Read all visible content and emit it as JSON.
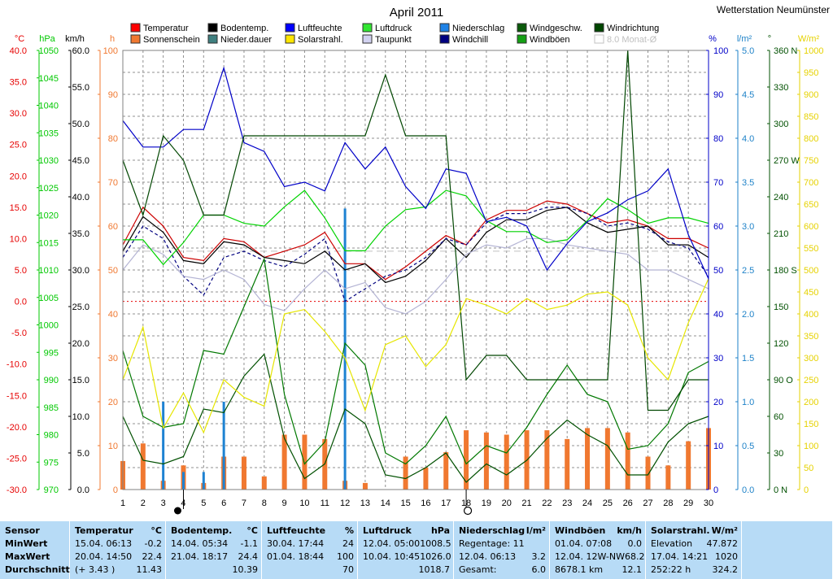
{
  "chart_data": {
    "type": "line",
    "title": "April 2011",
    "station": "Wetterstation Neumünster",
    "x": {
      "min": 1,
      "max": 30,
      "ticks": [
        1,
        2,
        3,
        4,
        5,
        6,
        7,
        8,
        9,
        10,
        11,
        12,
        13,
        14,
        15,
        16,
        17,
        18,
        19,
        20,
        21,
        22,
        23,
        24,
        25,
        26,
        27,
        28,
        29,
        30
      ]
    },
    "axes": [
      {
        "id": "temp",
        "unit": "°C",
        "color": "#e60000",
        "min": -30,
        "max": 40,
        "ticks": [
          "40.0",
          "35.0",
          "30.0",
          "25.0",
          "20.0",
          "15.0",
          "10.0",
          "5.0",
          "0.0",
          "-5.0",
          "-10.0",
          "-15.0",
          "-20.0",
          "-25.0",
          "-30.0"
        ]
      },
      {
        "id": "press",
        "unit": "hPa",
        "color": "#00c800",
        "min": 970,
        "max": 1050,
        "ticks": [
          "1050",
          "1045",
          "1040",
          "1035",
          "1030",
          "1025",
          "1020",
          "1015",
          "1010",
          "1005",
          "1000",
          "995",
          "990",
          "985",
          "980",
          "975",
          "970"
        ]
      },
      {
        "id": "wind",
        "unit": "km/h",
        "color": "#000000",
        "min": 0,
        "max": 60,
        "ticks": [
          "60.0",
          "55.0",
          "50.0",
          "45.0",
          "40.0",
          "35.0",
          "30.0",
          "25.0",
          "20.0",
          "15.0",
          "10.0",
          "5.0",
          "0.0"
        ]
      },
      {
        "id": "sun",
        "unit": "h",
        "color": "#f07830",
        "min": 0,
        "max": 100,
        "ticks": [
          "100",
          "90",
          "80",
          "70",
          "60",
          "50",
          "40",
          "30",
          "20",
          "10",
          "0"
        ]
      },
      {
        "id": "hum",
        "unit": "%",
        "color": "#0000c8",
        "min": 0,
        "max": 100,
        "ticks": [
          "100",
          "90",
          "80",
          "70",
          "60",
          "50",
          "40",
          "30",
          "20",
          "10",
          "0"
        ]
      },
      {
        "id": "rain",
        "unit": "l/m²",
        "color": "#1e82c8",
        "min": 0,
        "max": 5,
        "ticks": [
          "5.0",
          "4.5",
          "4.0",
          "3.5",
          "3.0",
          "2.5",
          "2.0",
          "1.5",
          "1.0",
          "0.5",
          "0.0"
        ]
      },
      {
        "id": "dir",
        "unit": "°",
        "color": "#005000",
        "min": 0,
        "max": 360,
        "ticks": [
          "360 N",
          "330",
          "300",
          "270 W",
          "240",
          "210",
          "180 S",
          "150",
          "120",
          "90 O",
          "60",
          "30",
          "0 N"
        ]
      },
      {
        "id": "solar",
        "unit": "W/m²",
        "color": "#e6d200",
        "min": 0,
        "max": 1000,
        "ticks": [
          "1000",
          "950",
          "900",
          "850",
          "800",
          "750",
          "700",
          "650",
          "600",
          "550",
          "500",
          "450",
          "400",
          "350",
          "300",
          "250",
          "200",
          "150",
          "100",
          "50",
          "0"
        ]
      }
    ],
    "legend": [
      {
        "label": "Temperatur",
        "color": "#ff0000"
      },
      {
        "label": "Sonnenschein",
        "color": "#f07830"
      },
      {
        "label": "Bodentemp.",
        "color": "#000000"
      },
      {
        "label": "Nieder.dauer",
        "color": "#408080"
      },
      {
        "label": "Luftfeuchte",
        "color": "#0000ff"
      },
      {
        "label": "Solarstrahl.",
        "color": "#ffe600"
      },
      {
        "label": "Luftdruck",
        "color": "#32e632"
      },
      {
        "label": "Taupunkt",
        "color": "#d2d2f0"
      },
      {
        "label": "Niederschlag",
        "color": "#1e82e6"
      },
      {
        "label": "Windchill",
        "color": "#000080"
      },
      {
        "label": "Windgeschw.",
        "color": "#0a5a0a"
      },
      {
        "label": "Windböen",
        "color": "#14a014"
      },
      {
        "label": "Windrichtung",
        "color": "#004600"
      },
      {
        "label": "8.0 Monat-Ø",
        "color": "#c8c8c8"
      }
    ],
    "series": [
      {
        "name": "Temperatur",
        "axis": "temp",
        "color": "#cc0000",
        "style": "solid",
        "values": [
          9.0,
          15.0,
          12.0,
          7.0,
          6.5,
          10.0,
          9.5,
          7.0,
          8.0,
          9.0,
          11.0,
          6.0,
          6.0,
          3.5,
          5.5,
          8.0,
          10.5,
          9.0,
          13.0,
          14.5,
          14.5,
          16.0,
          15.5,
          14.0,
          12.5,
          13.0,
          12.0,
          10.0,
          10.0,
          8.5
        ]
      },
      {
        "name": "Bodentemp.",
        "axis": "temp",
        "color": "#000000",
        "style": "solid",
        "values": [
          8.0,
          13.5,
          11.0,
          6.5,
          6.0,
          9.5,
          9.0,
          7.0,
          6.5,
          6.0,
          8.0,
          5.0,
          6.0,
          3.0,
          4.0,
          6.5,
          10.0,
          7.0,
          11.0,
          13.0,
          13.0,
          14.5,
          15.0,
          12.5,
          11.0,
          11.5,
          12.0,
          9.0,
          9.0,
          7.0
        ]
      },
      {
        "name": "Windchill",
        "axis": "temp",
        "color": "#000080",
        "style": "dashed",
        "values": [
          7.0,
          12.0,
          10.0,
          4.0,
          1.0,
          7.0,
          8.0,
          6.5,
          5.5,
          7.5,
          10.0,
          0.0,
          2.0,
          4.0,
          5.0,
          7.0,
          10.0,
          9.0,
          12.5,
          14.0,
          14.0,
          15.0,
          15.0,
          14.0,
          12.0,
          12.5,
          11.5,
          9.5,
          8.5,
          4.0
        ]
      },
      {
        "name": "Taupunkt",
        "axis": "temp",
        "color": "#b4b4d4",
        "style": "solid",
        "values": [
          5.0,
          9.0,
          7.5,
          4.0,
          3.5,
          5.0,
          3.5,
          -0.5,
          -1.5,
          2.0,
          5.0,
          2.0,
          3.0,
          -1.0,
          -2.0,
          0.0,
          3.5,
          7.5,
          9.0,
          8.5,
          10.0,
          10.0,
          9.0,
          8.5,
          8.0,
          7.5,
          5.0,
          5.0,
          3.5,
          2.0
        ]
      },
      {
        "name": "Luftdruck",
        "axis": "press",
        "color": "#00d200",
        "style": "solid",
        "values": [
          1015.5,
          1015.5,
          1011.0,
          1015.0,
          1020.0,
          1020.0,
          1018.5,
          1018.0,
          1021.5,
          1024.5,
          1019.5,
          1013.5,
          1013.5,
          1018.0,
          1021.0,
          1021.5,
          1024.5,
          1023.5,
          1019.0,
          1017.0,
          1017.0,
          1015.0,
          1015.5,
          1019.0,
          1023.0,
          1021.0,
          1018.5,
          1019.5,
          1019.5,
          1018.5
        ]
      },
      {
        "name": "Luftfeuchte",
        "axis": "hum",
        "color": "#0000c8",
        "style": "solid",
        "values": [
          84,
          78,
          78,
          82,
          82,
          96,
          79,
          77,
          69,
          70,
          68,
          79,
          73,
          78,
          69,
          64,
          73,
          72,
          61,
          62,
          60,
          50,
          56,
          61,
          63,
          66,
          68,
          73,
          58,
          48
        ]
      },
      {
        "name": "Windböen",
        "axis": "wind",
        "color": "#007800",
        "style": "solid",
        "values": [
          19.0,
          10.0,
          8.5,
          9.0,
          19.0,
          18.5,
          25.0,
          31.5,
          13.0,
          3.5,
          6.5,
          20.0,
          17.0,
          5.0,
          3.5,
          6.0,
          10.0,
          3.5,
          6.0,
          5.0,
          8.5,
          13.0,
          17.0,
          13.0,
          12.0,
          5.5,
          6.0,
          9.0,
          16.0,
          17.5
        ]
      },
      {
        "name": "Windgeschw.",
        "axis": "wind",
        "color": "#005000",
        "style": "solid",
        "values": [
          10.0,
          4.0,
          3.5,
          4.5,
          11.0,
          10.5,
          15.5,
          18.5,
          7.0,
          1.5,
          3.5,
          11.0,
          9.0,
          2.0,
          1.5,
          3.0,
          5.0,
          1.0,
          3.5,
          2.0,
          4.0,
          7.0,
          9.5,
          7.5,
          6.0,
          2.0,
          2.0,
          6.5,
          9.0,
          10.0
        ]
      },
      {
        "name": "Windrichtung",
        "axis": "dir",
        "color": "#004600",
        "style": "solid",
        "values": [
          270,
          225,
          290,
          270,
          225,
          225,
          290,
          290,
          290,
          290,
          290,
          290,
          290,
          340,
          290,
          290,
          290,
          90,
          110,
          110,
          90,
          90,
          90,
          90,
          90,
          360,
          65,
          65,
          90,
          90
        ]
      },
      {
        "name": "Solarstrahl.",
        "axis": "solar",
        "color": "#e6e600",
        "style": "solid",
        "values": [
          250,
          370,
          140,
          220,
          130,
          250,
          210,
          190,
          400,
          410,
          360,
          300,
          180,
          330,
          350,
          280,
          330,
          435,
          420,
          400,
          435,
          410,
          420,
          445,
          450,
          420,
          300,
          250,
          380,
          480
        ]
      }
    ],
    "bars": [
      {
        "name": "Sonnenschein",
        "axis": "sun",
        "color": "#f07830",
        "values": [
          6.5,
          10.5,
          2.0,
          5.5,
          1.5,
          7.5,
          7.5,
          3.0,
          12.5,
          12.5,
          11.5,
          2.0,
          1.5,
          0,
          7.5,
          5.0,
          8.5,
          13.5,
          13.0,
          12.5,
          13.5,
          13.5,
          11.5,
          14.0,
          14.0,
          13.0,
          7.5,
          5.5,
          11.0,
          14.0
        ]
      },
      {
        "name": "Niederschlag",
        "axis": "rain",
        "color": "#1e82d2",
        "values": [
          0,
          0,
          1.0,
          0.2,
          0.2,
          1.0,
          0,
          0,
          0,
          0,
          0,
          3.2,
          0,
          0,
          0,
          0,
          0,
          0,
          0,
          0,
          0,
          0,
          0,
          0,
          0,
          0,
          0,
          0,
          0,
          0
        ]
      }
    ],
    "hlines": [
      {
        "name": "0 °C",
        "axis": "temp",
        "value": 0,
        "color": "#e60000"
      },
      {
        "name": "8.0 Monat-Ø",
        "axis": "temp",
        "value": 8.0,
        "color": "#c0c0c0"
      }
    ],
    "moon": {
      "new_day": 4,
      "full_day": 18
    }
  },
  "panels": [
    {
      "id": "sensor",
      "title": "Sensor",
      "unit": "",
      "rows": [
        [
          "MinWert",
          ""
        ],
        [
          "MaxWert",
          ""
        ],
        [
          "Durchschnitt",
          ""
        ]
      ]
    },
    {
      "id": "temperatur",
      "title": "Temperatur",
      "unit": "°C",
      "rows": [
        [
          "15.04.  06:13",
          "-0.2"
        ],
        [
          "20.04.  14:50",
          "22.4"
        ],
        [
          "(+ 3.43 )",
          "11.43"
        ]
      ]
    },
    {
      "id": "bodentemp",
      "title": "Bodentemp.",
      "unit": "°C",
      "rows": [
        [
          "14.04.  05:34",
          "-1.1"
        ],
        [
          "21.04.  18:17",
          "24.4"
        ],
        [
          "",
          "10.39"
        ]
      ]
    },
    {
      "id": "luftfeuchte",
      "title": "Luftfeuchte",
      "unit": "%",
      "rows": [
        [
          "30.04.  17:44",
          "24"
        ],
        [
          "01.04.  18:44",
          "100"
        ],
        [
          "",
          "70"
        ]
      ]
    },
    {
      "id": "luftdruck",
      "title": "Luftdruck",
      "unit": "hPa",
      "rows": [
        [
          "12.04.  05:00",
          "1008.5"
        ],
        [
          "10.04.  10:45",
          "1026.0"
        ],
        [
          "",
          "1018.7"
        ]
      ]
    },
    {
      "id": "niederschlag",
      "title": "Niederschlag",
      "unit": "l/m²",
      "rows": [
        [
          "Regentage: 11",
          ""
        ],
        [
          "12.04.  06:13",
          "3.2"
        ],
        [
          "Gesamt:",
          "6.0"
        ]
      ]
    },
    {
      "id": "windboeen",
      "title": "Windböen",
      "unit": "km/h",
      "rows": [
        [
          "01.04.  07:08",
          "0.0"
        ],
        [
          "12.04.  12W-NW",
          "68.2"
        ],
        [
          "8678.1 km",
          "12.1"
        ]
      ]
    },
    {
      "id": "solarstrahl",
      "title": "Solarstrahl.",
      "unit": "W/m²",
      "rows": [
        [
          "Elevation",
          "47.872"
        ],
        [
          "17.04.  14:21",
          "1020"
        ],
        [
          "252:22 h",
          "324.2"
        ]
      ]
    },
    {
      "id": "blank",
      "title": "",
      "unit": "",
      "rows": [
        [
          "",
          ""
        ],
        [
          "",
          ""
        ],
        [
          "",
          ""
        ]
      ]
    }
  ]
}
